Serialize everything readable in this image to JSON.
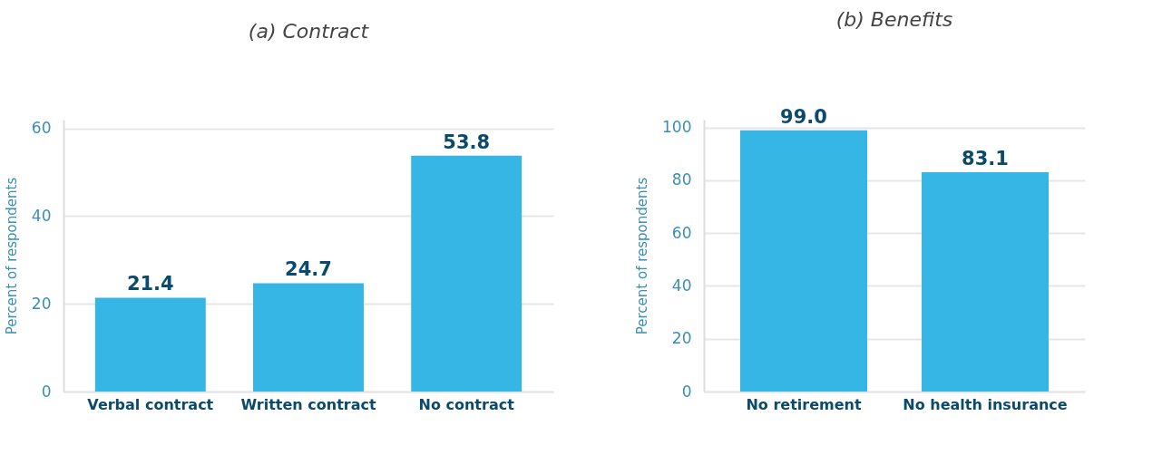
{
  "chart_data": [
    {
      "type": "bar",
      "title": "(a) Contract",
      "ylabel": "Percent of respondents",
      "categories": [
        "Verbal contract",
        "Written contract",
        "No  contract"
      ],
      "values": [
        21.4,
        24.7,
        53.8
      ],
      "value_labels": [
        "21.4",
        "24.7",
        "53.8"
      ],
      "color": "#35b6e5",
      "ylim": [
        0,
        62
      ],
      "yticks": [
        0,
        20,
        40,
        60
      ],
      "grid": "y"
    },
    {
      "type": "bar",
      "title": "(b) Benefits",
      "ylabel": "Percent of respondents",
      "categories": [
        "No retirement",
        "No health insurance"
      ],
      "values": [
        99.0,
        83.1
      ],
      "value_labels": [
        "99.0",
        "83.1"
      ],
      "color": "#35b6e5",
      "ylim": [
        0,
        103
      ],
      "yticks": [
        0,
        20,
        40,
        60,
        80,
        100
      ],
      "grid": "y"
    }
  ]
}
